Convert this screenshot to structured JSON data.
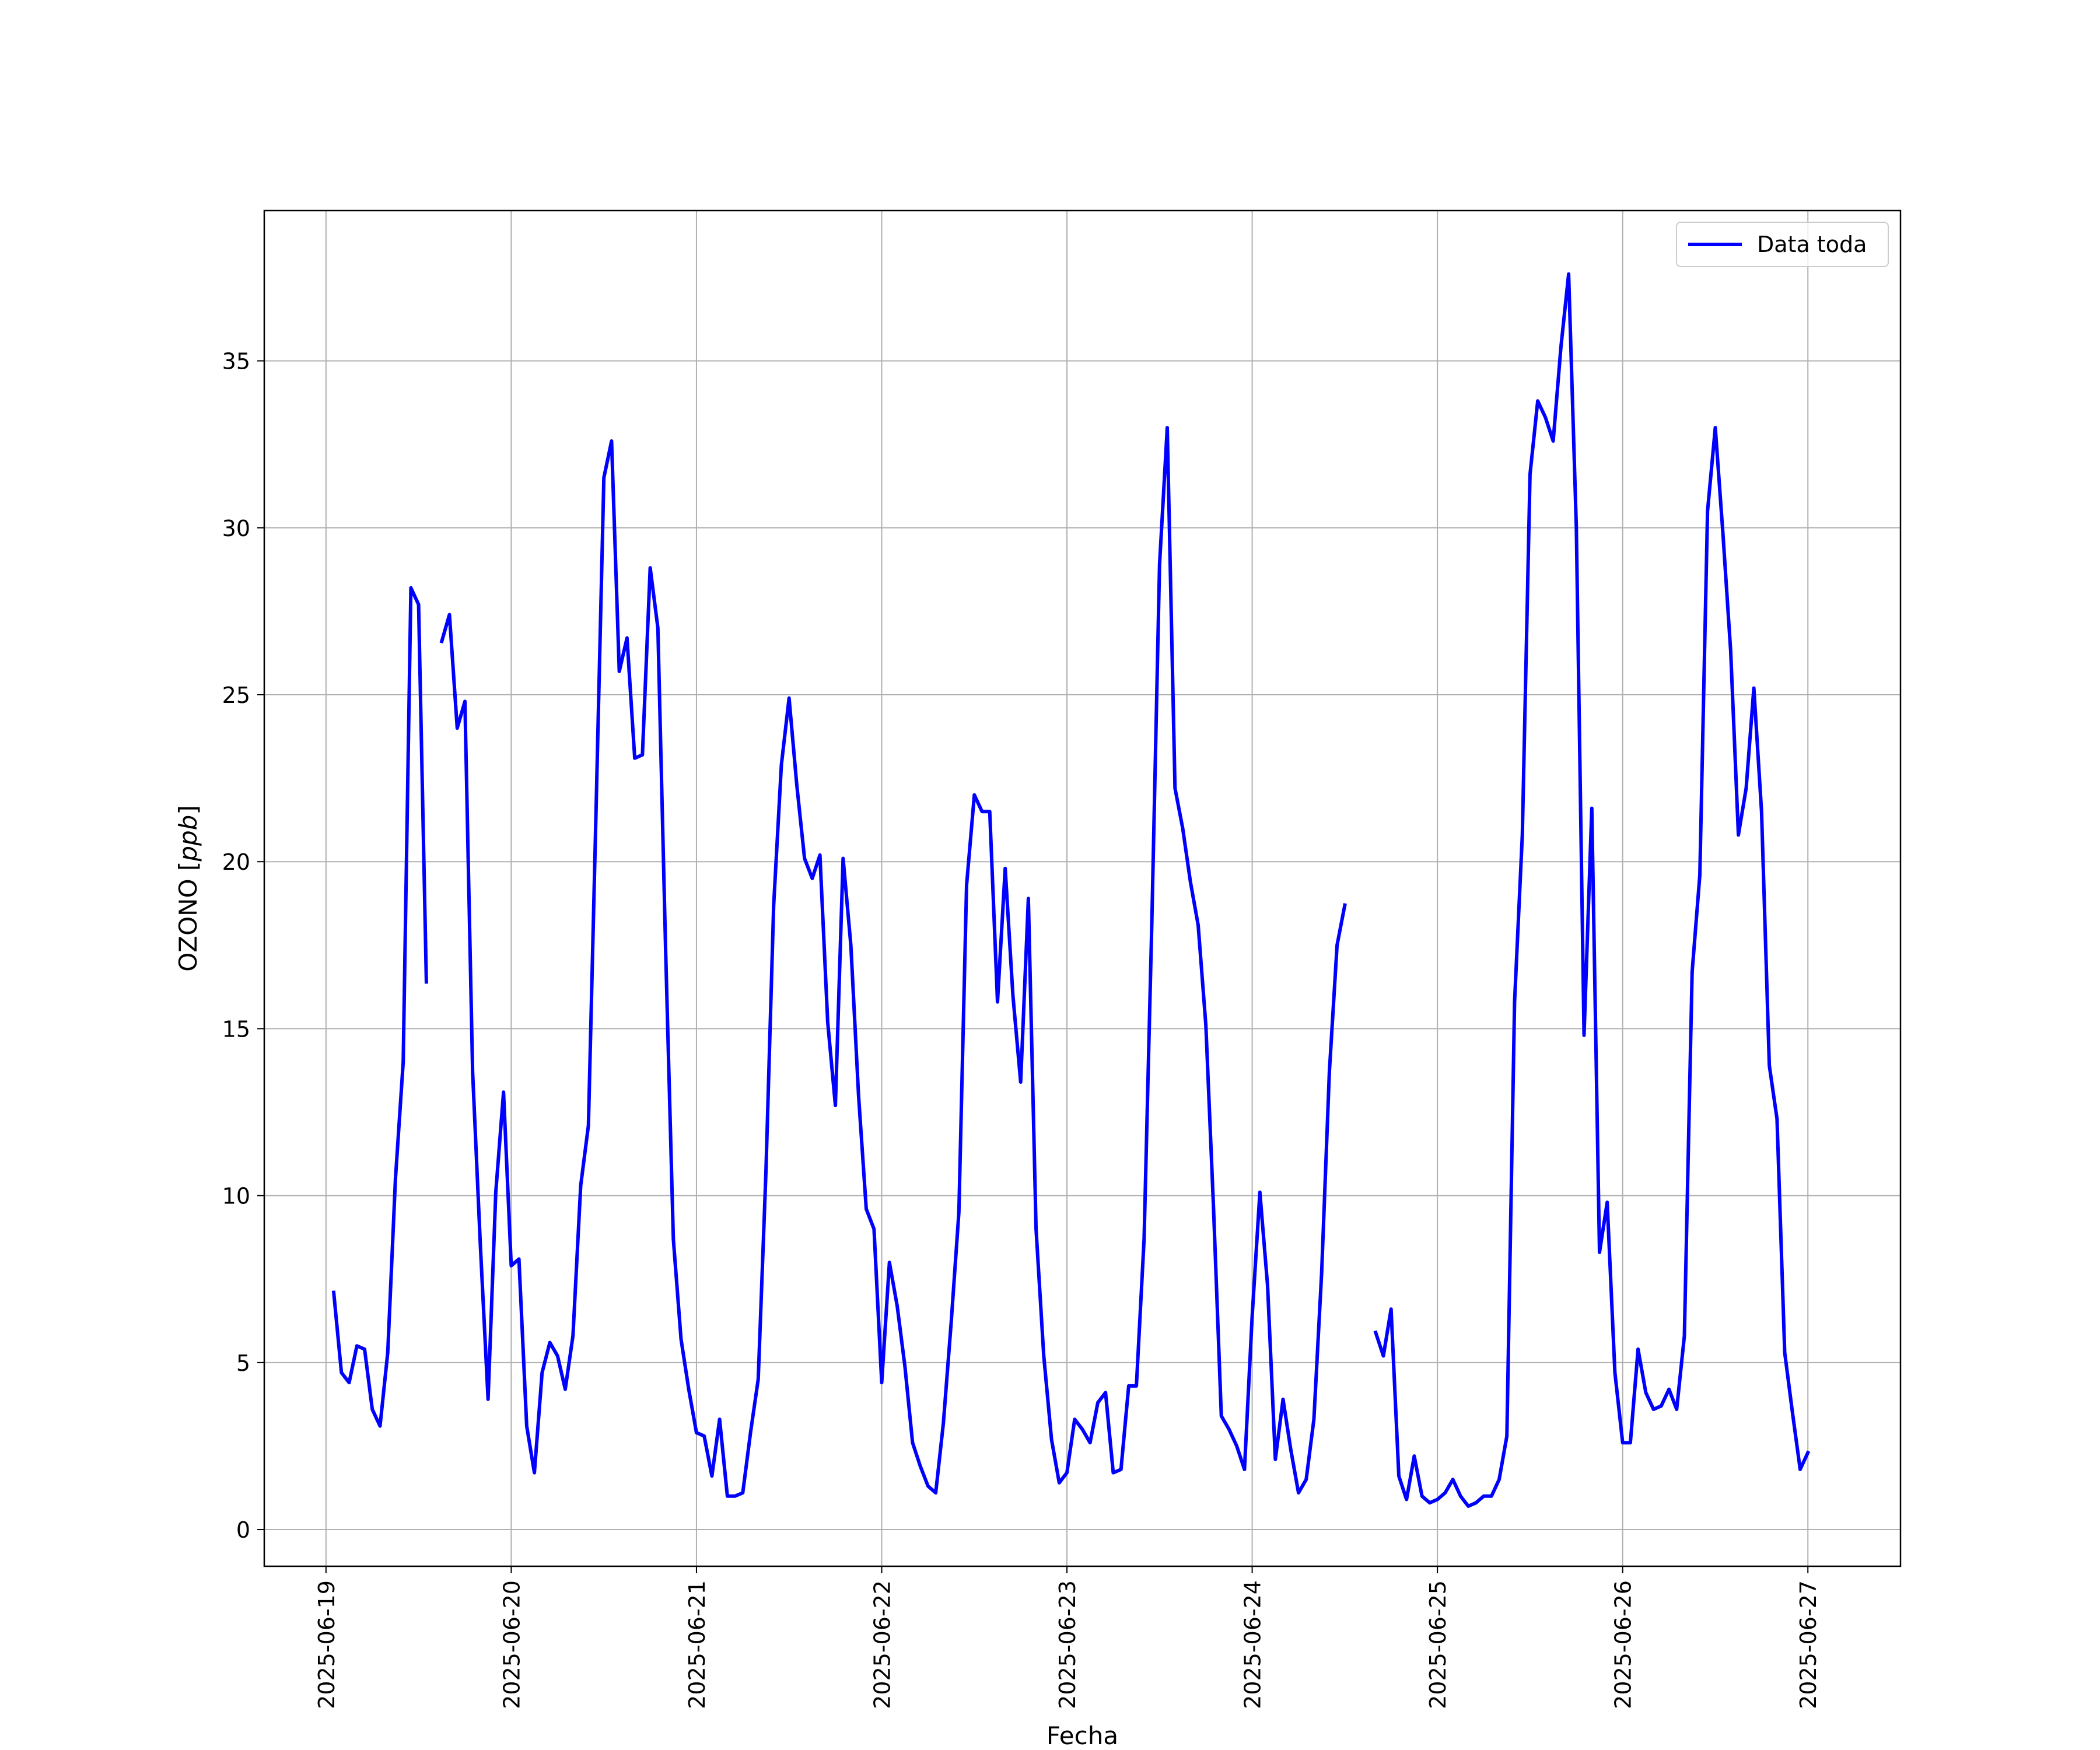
{
  "chart_data": {
    "type": "line",
    "xlabel": "Fecha",
    "ylabel_text": "OZONO [",
    "ylabel_unit": "ppb",
    "ylabel_close": "]",
    "grid": true,
    "legend_position": "top-right",
    "xlim": [
      "2025-06-18T16:00",
      "2025-06-27T12:00"
    ],
    "ylim": [
      -1.1,
      39.5
    ],
    "xticks": [
      "2025-06-19",
      "2025-06-20",
      "2025-06-21",
      "2025-06-22",
      "2025-06-23",
      "2025-06-24",
      "2025-06-25",
      "2025-06-26",
      "2025-06-27"
    ],
    "yticks": [
      0,
      5,
      10,
      15,
      20,
      25,
      30,
      35
    ],
    "series": [
      {
        "name": "Data toda",
        "color": "#0000ff",
        "points": [
          [
            "2025-06-19T01:00",
            7.1
          ],
          [
            "2025-06-19T02:00",
            4.7
          ],
          [
            "2025-06-19T03:00",
            4.4
          ],
          [
            "2025-06-19T04:00",
            5.5
          ],
          [
            "2025-06-19T05:00",
            5.4
          ],
          [
            "2025-06-19T06:00",
            3.6
          ],
          [
            "2025-06-19T07:00",
            3.1
          ],
          [
            "2025-06-19T08:00",
            5.3
          ],
          [
            "2025-06-19T09:00",
            10.5
          ],
          [
            "2025-06-19T10:00",
            14.0
          ],
          [
            "2025-06-19T11:00",
            28.2
          ],
          [
            "2025-06-19T12:00",
            27.7
          ],
          [
            "2025-06-19T13:00",
            16.4
          ],
          null,
          [
            "2025-06-19T15:00",
            26.6
          ],
          [
            "2025-06-19T16:00",
            27.4
          ],
          [
            "2025-06-19T17:00",
            24.0
          ],
          [
            "2025-06-19T18:00",
            24.8
          ],
          [
            "2025-06-19T19:00",
            13.7
          ],
          [
            "2025-06-19T20:00",
            8.5
          ],
          [
            "2025-06-19T21:00",
            3.9
          ],
          [
            "2025-06-19T22:00",
            10.1
          ],
          [
            "2025-06-19T23:00",
            13.1
          ],
          [
            "2025-06-20T00:00",
            7.9
          ],
          [
            "2025-06-20T01:00",
            8.1
          ],
          [
            "2025-06-20T02:00",
            3.1
          ],
          [
            "2025-06-20T03:00",
            1.7
          ],
          [
            "2025-06-20T04:00",
            4.7
          ],
          [
            "2025-06-20T05:00",
            5.6
          ],
          [
            "2025-06-20T06:00",
            5.2
          ],
          [
            "2025-06-20T07:00",
            4.2
          ],
          [
            "2025-06-20T08:00",
            5.8
          ],
          [
            "2025-06-20T09:00",
            10.3
          ],
          [
            "2025-06-20T10:00",
            12.1
          ],
          [
            "2025-06-20T11:00",
            21.6
          ],
          [
            "2025-06-20T12:00",
            31.5
          ],
          [
            "2025-06-20T13:00",
            32.6
          ],
          [
            "2025-06-20T14:00",
            25.7
          ],
          [
            "2025-06-20T15:00",
            26.7
          ],
          [
            "2025-06-20T16:00",
            23.1
          ],
          [
            "2025-06-20T17:00",
            23.2
          ],
          [
            "2025-06-20T18:00",
            28.8
          ],
          [
            "2025-06-20T19:00",
            27.0
          ],
          [
            "2025-06-20T20:00",
            17.4
          ],
          [
            "2025-06-20T21:00",
            8.7
          ],
          [
            "2025-06-20T22:00",
            5.7
          ],
          [
            "2025-06-20T23:00",
            4.2
          ],
          [
            "2025-06-21T00:00",
            2.9
          ],
          [
            "2025-06-21T01:00",
            2.8
          ],
          [
            "2025-06-21T02:00",
            1.6
          ],
          [
            "2025-06-21T03:00",
            3.3
          ],
          [
            "2025-06-21T04:00",
            1.0
          ],
          [
            "2025-06-21T05:00",
            1.0
          ],
          [
            "2025-06-21T06:00",
            1.1
          ],
          [
            "2025-06-21T07:00",
            2.9
          ],
          [
            "2025-06-21T08:00",
            4.5
          ],
          [
            "2025-06-21T09:00",
            10.7
          ],
          [
            "2025-06-21T10:00",
            18.7
          ],
          [
            "2025-06-21T11:00",
            22.9
          ],
          [
            "2025-06-21T12:00",
            24.9
          ],
          [
            "2025-06-21T13:00",
            22.3
          ],
          [
            "2025-06-21T14:00",
            20.1
          ],
          [
            "2025-06-21T15:00",
            19.5
          ],
          [
            "2025-06-21T16:00",
            20.2
          ],
          [
            "2025-06-21T17:00",
            15.2
          ],
          [
            "2025-06-21T18:00",
            12.7
          ],
          [
            "2025-06-21T19:00",
            20.1
          ],
          [
            "2025-06-21T20:00",
            17.5
          ],
          [
            "2025-06-21T21:00",
            13.0
          ],
          [
            "2025-06-21T22:00",
            9.6
          ],
          [
            "2025-06-21T23:00",
            9.0
          ],
          [
            "2025-06-22T00:00",
            4.4
          ],
          [
            "2025-06-22T01:00",
            8.0
          ],
          [
            "2025-06-22T02:00",
            6.7
          ],
          [
            "2025-06-22T03:00",
            4.9
          ],
          [
            "2025-06-22T04:00",
            2.6
          ],
          [
            "2025-06-22T05:00",
            1.9
          ],
          [
            "2025-06-22T06:00",
            1.3
          ],
          [
            "2025-06-22T07:00",
            1.1
          ],
          [
            "2025-06-22T08:00",
            3.2
          ],
          [
            "2025-06-22T09:00",
            6.2
          ],
          [
            "2025-06-22T10:00",
            9.5
          ],
          [
            "2025-06-22T11:00",
            19.3
          ],
          [
            "2025-06-22T12:00",
            22.0
          ],
          [
            "2025-06-22T13:00",
            21.5
          ],
          [
            "2025-06-22T14:00",
            21.5
          ],
          [
            "2025-06-22T15:00",
            15.8
          ],
          [
            "2025-06-22T16:00",
            19.8
          ],
          [
            "2025-06-22T17:00",
            16.0
          ],
          [
            "2025-06-22T18:00",
            13.4
          ],
          [
            "2025-06-22T19:00",
            18.9
          ],
          [
            "2025-06-22T20:00",
            9.0
          ],
          [
            "2025-06-22T21:00",
            5.2
          ],
          [
            "2025-06-22T22:00",
            2.7
          ],
          [
            "2025-06-22T23:00",
            1.4
          ],
          [
            "2025-06-23T00:00",
            1.7
          ],
          [
            "2025-06-23T01:00",
            3.3
          ],
          [
            "2025-06-23T02:00",
            3.0
          ],
          [
            "2025-06-23T03:00",
            2.6
          ],
          [
            "2025-06-23T04:00",
            3.8
          ],
          [
            "2025-06-23T05:00",
            4.1
          ],
          [
            "2025-06-23T06:00",
            1.7
          ],
          [
            "2025-06-23T07:00",
            1.8
          ],
          [
            "2025-06-23T08:00",
            4.3
          ],
          [
            "2025-06-23T09:00",
            4.3
          ],
          [
            "2025-06-23T10:00",
            8.7
          ],
          [
            "2025-06-23T11:00",
            18.2
          ],
          [
            "2025-06-23T12:00",
            28.9
          ],
          [
            "2025-06-23T13:00",
            33.0
          ],
          [
            "2025-06-23T14:00",
            22.2
          ],
          [
            "2025-06-23T15:00",
            21.0
          ],
          [
            "2025-06-23T16:00",
            19.4
          ],
          [
            "2025-06-23T17:00",
            18.1
          ],
          [
            "2025-06-23T18:00",
            15.1
          ],
          [
            "2025-06-23T19:00",
            9.6
          ],
          [
            "2025-06-23T20:00",
            3.4
          ],
          [
            "2025-06-23T21:00",
            3.0
          ],
          [
            "2025-06-23T22:00",
            2.5
          ],
          [
            "2025-06-23T23:00",
            1.8
          ],
          [
            "2025-06-24T00:00",
            6.4
          ],
          [
            "2025-06-24T01:00",
            10.1
          ],
          [
            "2025-06-24T02:00",
            7.3
          ],
          [
            "2025-06-24T03:00",
            2.1
          ],
          [
            "2025-06-24T04:00",
            3.9
          ],
          [
            "2025-06-24T05:00",
            2.4
          ],
          [
            "2025-06-24T06:00",
            1.1
          ],
          [
            "2025-06-24T07:00",
            1.5
          ],
          [
            "2025-06-24T08:00",
            3.3
          ],
          [
            "2025-06-24T09:00",
            7.7
          ],
          [
            "2025-06-24T10:00",
            13.7
          ],
          [
            "2025-06-24T11:00",
            17.5
          ],
          [
            "2025-06-24T12:00",
            18.7
          ],
          null,
          [
            "2025-06-24T16:00",
            5.9
          ],
          [
            "2025-06-24T17:00",
            5.2
          ],
          [
            "2025-06-24T18:00",
            6.6
          ],
          [
            "2025-06-24T19:00",
            1.6
          ],
          [
            "2025-06-24T20:00",
            0.9
          ],
          [
            "2025-06-24T21:00",
            2.2
          ],
          [
            "2025-06-24T22:00",
            1.0
          ],
          [
            "2025-06-24T23:00",
            0.8
          ],
          [
            "2025-06-25T00:00",
            0.9
          ],
          [
            "2025-06-25T01:00",
            1.1
          ],
          [
            "2025-06-25T02:00",
            1.5
          ],
          [
            "2025-06-25T03:00",
            1.0
          ],
          [
            "2025-06-25T04:00",
            0.7
          ],
          [
            "2025-06-25T05:00",
            0.8
          ],
          [
            "2025-06-25T06:00",
            1.0
          ],
          [
            "2025-06-25T07:00",
            1.0
          ],
          [
            "2025-06-25T08:00",
            1.5
          ],
          [
            "2025-06-25T09:00",
            2.8
          ],
          [
            "2025-06-25T10:00",
            15.8
          ],
          [
            "2025-06-25T11:00",
            20.8
          ],
          [
            "2025-06-25T12:00",
            31.6
          ],
          [
            "2025-06-25T13:00",
            33.8
          ],
          [
            "2025-06-25T14:00",
            33.3
          ],
          [
            "2025-06-25T15:00",
            32.6
          ],
          [
            "2025-06-25T16:00",
            35.4
          ],
          [
            "2025-06-25T17:00",
            37.6
          ],
          [
            "2025-06-25T18:00",
            30.0
          ],
          [
            "2025-06-25T19:00",
            14.8
          ],
          [
            "2025-06-25T20:00",
            21.6
          ],
          [
            "2025-06-25T21:00",
            8.3
          ],
          [
            "2025-06-25T22:00",
            9.8
          ],
          [
            "2025-06-25T23:00",
            4.7
          ],
          [
            "2025-06-26T00:00",
            2.6
          ],
          [
            "2025-06-26T01:00",
            2.6
          ],
          [
            "2025-06-26T02:00",
            5.4
          ],
          [
            "2025-06-26T03:00",
            4.1
          ],
          [
            "2025-06-26T04:00",
            3.6
          ],
          [
            "2025-06-26T05:00",
            3.7
          ],
          [
            "2025-06-26T06:00",
            4.2
          ],
          [
            "2025-06-26T07:00",
            3.6
          ],
          [
            "2025-06-26T08:00",
            5.8
          ],
          [
            "2025-06-26T09:00",
            16.7
          ],
          [
            "2025-06-26T10:00",
            19.6
          ],
          [
            "2025-06-26T11:00",
            30.5
          ],
          [
            "2025-06-26T12:00",
            33.0
          ],
          [
            "2025-06-26T13:00",
            29.8
          ],
          [
            "2025-06-26T14:00",
            26.3
          ],
          [
            "2025-06-26T15:00",
            20.8
          ],
          [
            "2025-06-26T16:00",
            22.2
          ],
          [
            "2025-06-26T17:00",
            25.2
          ],
          [
            "2025-06-26T18:00",
            21.5
          ],
          [
            "2025-06-26T19:00",
            13.9
          ],
          [
            "2025-06-26T20:00",
            12.3
          ],
          [
            "2025-06-26T21:00",
            5.3
          ],
          [
            "2025-06-26T22:00",
            3.5
          ],
          [
            "2025-06-26T23:00",
            1.8
          ],
          [
            "2025-06-27T00:00",
            2.3
          ]
        ]
      }
    ]
  }
}
